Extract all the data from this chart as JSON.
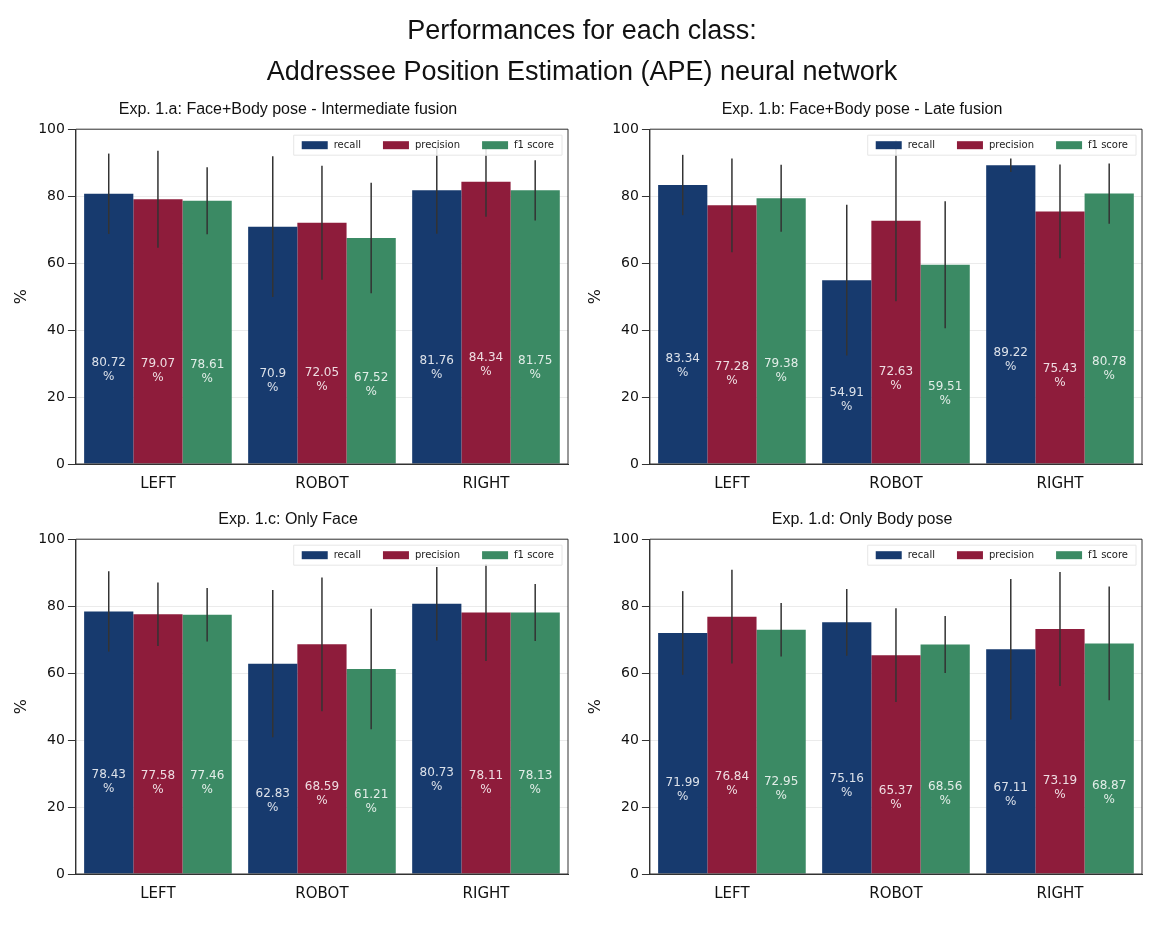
{
  "chart_data": [
    {
      "type": "bar",
      "title": "Exp. 1.a: Face+Body pose - Intermediate fusion",
      "ylabel": "%",
      "annotations": [
        "Performances for each class:",
        "Addressee Position Estimation (APE) neural network"
      ],
      "categories": [
        "LEFT",
        "ROBOT",
        "RIGHT"
      ],
      "ylim": [
        0,
        100
      ],
      "yticks": [
        0,
        20,
        40,
        60,
        80,
        100
      ],
      "grid": "y",
      "legend": "top right",
      "series": [
        {
          "name": "recall",
          "color": "#173a6e",
          "values": [
            80.72,
            70.9,
            81.76
          ],
          "errors": [
            12,
            21,
            13
          ],
          "value_labels": [
            "80.72 %",
            "70.9 %",
            "81.76 %"
          ]
        },
        {
          "name": "precision",
          "color": "#8e1c3b",
          "values": [
            79.07,
            72.05,
            84.34
          ],
          "errors": [
            14.5,
            17,
            10.5
          ],
          "value_labels": [
            "79.07 %",
            "72.05 %",
            "84.34 %"
          ]
        },
        {
          "name": "f1 score",
          "color": "#3b8a64",
          "values": [
            78.61,
            67.52,
            81.75
          ],
          "errors": [
            10,
            16.5,
            9
          ],
          "value_labels": [
            "78.61 %",
            "67.52 %",
            "81.75 %"
          ]
        }
      ]
    },
    {
      "type": "bar",
      "title": "Exp. 1.b: Face+Body pose - Late fusion",
      "ylabel": "%",
      "categories": [
        "LEFT",
        "ROBOT",
        "RIGHT"
      ],
      "ylim": [
        0,
        100
      ],
      "yticks": [
        0,
        20,
        40,
        60,
        80,
        100
      ],
      "grid": "y",
      "legend": "top right",
      "series": [
        {
          "name": "recall",
          "color": "#173a6e",
          "values": [
            83.34,
            54.91,
            89.22
          ],
          "errors": [
            9,
            22.5,
            2
          ],
          "value_labels": [
            "83.34 %",
            "54.91 %",
            "89.22 %"
          ]
        },
        {
          "name": "precision",
          "color": "#8e1c3b",
          "values": [
            77.28,
            72.63,
            75.43
          ],
          "errors": [
            14,
            24,
            14
          ],
          "value_labels": [
            "77.28 %",
            "72.63 %",
            "75.43 %"
          ]
        },
        {
          "name": "f1 score",
          "color": "#3b8a64",
          "values": [
            79.38,
            59.51,
            80.78
          ],
          "errors": [
            10,
            19,
            9
          ],
          "value_labels": [
            "79.38 %",
            "59.51 %",
            "80.78 %"
          ]
        }
      ]
    },
    {
      "type": "bar",
      "title": "Exp. 1.c: Only Face",
      "ylabel": "%",
      "categories": [
        "LEFT",
        "ROBOT",
        "RIGHT"
      ],
      "ylim": [
        0,
        100
      ],
      "yticks": [
        0,
        20,
        40,
        60,
        80,
        100
      ],
      "grid": "y",
      "legend": "top right",
      "series": [
        {
          "name": "recall",
          "color": "#173a6e",
          "values": [
            78.43,
            62.83,
            80.73
          ],
          "errors": [
            12,
            22,
            11
          ],
          "value_labels": [
            "78.43 %",
            "62.83 %",
            "80.73 %"
          ]
        },
        {
          "name": "precision",
          "color": "#8e1c3b",
          "values": [
            77.58,
            68.59,
            78.11
          ],
          "errors": [
            9.5,
            20,
            14.5
          ],
          "value_labels": [
            "77.58 %",
            "68.59 %",
            "78.11 %"
          ]
        },
        {
          "name": "f1 score",
          "color": "#3b8a64",
          "values": [
            77.46,
            61.21,
            78.13
          ],
          "errors": [
            8,
            18,
            8.5
          ],
          "value_labels": [
            "77.46 %",
            "61.21 %",
            "78.13 %"
          ]
        }
      ]
    },
    {
      "type": "bar",
      "title": "Exp. 1.d: Only Body pose",
      "ylabel": "%",
      "categories": [
        "LEFT",
        "ROBOT",
        "RIGHT"
      ],
      "ylim": [
        0,
        100
      ],
      "yticks": [
        0,
        20,
        40,
        60,
        80,
        100
      ],
      "grid": "y",
      "legend": "top right",
      "series": [
        {
          "name": "recall",
          "color": "#173a6e",
          "values": [
            71.99,
            75.16,
            67.11
          ],
          "errors": [
            12.5,
            10,
            21
          ],
          "value_labels": [
            "71.99 %",
            "75.16 %",
            "67.11 %"
          ]
        },
        {
          "name": "precision",
          "color": "#8e1c3b",
          "values": [
            76.84,
            65.37,
            73.19
          ],
          "errors": [
            14,
            14,
            17
          ],
          "value_labels": [
            "76.84 %",
            "65.37 %",
            "73.19 %"
          ]
        },
        {
          "name": "f1 score",
          "color": "#3b8a64",
          "values": [
            72.95,
            68.56,
            68.87
          ],
          "errors": [
            8,
            8.5,
            17
          ],
          "value_labels": [
            "72.95 %",
            "68.56 %",
            "68.87 %"
          ]
        }
      ]
    }
  ]
}
